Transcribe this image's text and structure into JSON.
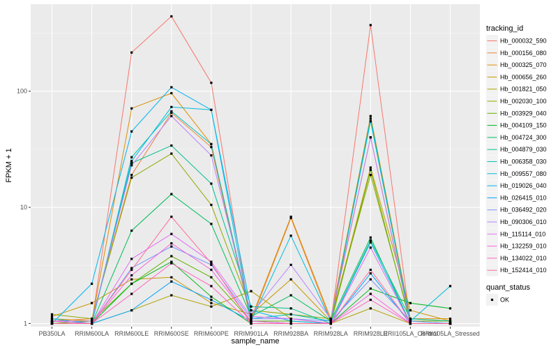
{
  "chart_data": {
    "type": "line",
    "xlabel": "sample_name",
    "ylabel": "FPKM + 1",
    "y_scale": "log10",
    "ylim": [
      0.94,
      560
    ],
    "y_ticks": [
      {
        "value": 1,
        "label": "1"
      },
      {
        "value": 10,
        "label": "10"
      },
      {
        "value": 100,
        "label": "100"
      }
    ],
    "grid": true,
    "legend_position": "right",
    "categories": [
      "PB350LA",
      "RRIM600LA",
      "RRIM600LE",
      "RRIM600SE",
      "RRIM600PE",
      "RRIM901LA",
      "RRIM928BA",
      "RRIM928LA",
      "RRIM928LE",
      "RRII105LA_Control",
      "RRII105LA_Stressed"
    ],
    "legend_title": "tracking_id",
    "series": [
      {
        "name": "Hb_000032_590",
        "color": "#F8766D",
        "values": [
          1.0,
          1.0,
          215,
          440,
          118,
          1.0,
          1.0,
          1.0,
          370,
          1.0,
          1.0
        ]
      },
      {
        "name": "Hb_000156_080",
        "color": "#EC8239",
        "values": [
          1.05,
          1.1,
          19,
          65,
          33,
          1.05,
          8.1,
          1.05,
          40,
          1.05,
          1.05
        ]
      },
      {
        "name": "Hb_000325_070",
        "color": "#DB8E00",
        "values": [
          1.1,
          1.05,
          71,
          96,
          35,
          1.1,
          8.3,
          1.1,
          61,
          1.1,
          1.1
        ]
      },
      {
        "name": "Hb_000656_260",
        "color": "#C79800",
        "values": [
          1.15,
          1.5,
          2.4,
          2.5,
          1.5,
          1.2,
          2.4,
          1.05,
          22,
          1.3,
          1.05
        ]
      },
      {
        "name": "Hb_001821_050",
        "color": "#AEA200",
        "values": [
          1.05,
          1.0,
          1.3,
          1.75,
          1.4,
          1.9,
          1.1,
          1.0,
          1.35,
          1.0,
          1.0
        ]
      },
      {
        "name": "Hb_002030_100",
        "color": "#8FAA00",
        "values": [
          1.2,
          1.1,
          18,
          29,
          10.5,
          1.3,
          1.2,
          1.1,
          19,
          1.05,
          1.05
        ]
      },
      {
        "name": "Hb_003929_040",
        "color": "#64B200",
        "values": [
          1.0,
          1.05,
          2.2,
          3.8,
          2.5,
          1.05,
          1.05,
          1.0,
          21,
          1.0,
          1.0
        ]
      },
      {
        "name": "Hb_004109_150",
        "color": "#00B81B",
        "values": [
          1.05,
          1.0,
          2.2,
          3.4,
          1.7,
          1.0,
          1.0,
          1.0,
          2.0,
          1.5,
          1.35
        ]
      },
      {
        "name": "Hb_004724_300",
        "color": "#00BD5C",
        "values": [
          1.0,
          1.0,
          6.3,
          13,
          7.2,
          1.15,
          1.75,
          1.05,
          5.5,
          1.0,
          1.0
        ]
      },
      {
        "name": "Hb_004879_030",
        "color": "#00C08E",
        "values": [
          1.05,
          1.0,
          24,
          34,
          16,
          1.4,
          1.35,
          1.0,
          5.2,
          1.1,
          1.05
        ]
      },
      {
        "name": "Hb_006358_030",
        "color": "#00C1B7",
        "values": [
          1.0,
          1.0,
          27,
          67,
          35,
          1.1,
          1.2,
          1.05,
          58,
          1.05,
          1.0
        ]
      },
      {
        "name": "Hb_009557_080",
        "color": "#00BDDC",
        "values": [
          1.1,
          1.0,
          25,
          73,
          69,
          1.05,
          5.7,
          1.05,
          55,
          1.05,
          2.1
        ]
      },
      {
        "name": "Hb_019026_040",
        "color": "#00B4F0",
        "values": [
          1.0,
          2.2,
          45,
          108,
          69,
          1.3,
          1.05,
          1.0,
          5.0,
          1.0,
          1.0
        ]
      },
      {
        "name": "Hb_026415_010",
        "color": "#00A5FF",
        "values": [
          1.0,
          1.0,
          1.3,
          2.3,
          1.6,
          1.05,
          1.0,
          1.0,
          2.7,
          1.0,
          1.0
        ]
      },
      {
        "name": "Hb_036492_020",
        "color": "#7997FF",
        "values": [
          1.05,
          1.0,
          3.0,
          4.6,
          3.2,
          1.1,
          1.1,
          1.05,
          2.4,
          1.05,
          1.0
        ]
      },
      {
        "name": "Hb_090306_010",
        "color": "#BB83FF",
        "values": [
          1.05,
          1.05,
          23,
          61,
          28,
          1.2,
          3.2,
          1.1,
          40,
          1.0,
          1.0
        ]
      },
      {
        "name": "Hb_115114_010",
        "color": "#E26EF7",
        "values": [
          1.0,
          1.0,
          3.6,
          5.9,
          3.4,
          1.15,
          1.1,
          1.0,
          4.5,
          1.0,
          1.0
        ]
      },
      {
        "name": "Hb_132259_010",
        "color": "#F863DF",
        "values": [
          1.05,
          1.0,
          2.6,
          4.9,
          2.9,
          1.05,
          1.0,
          1.0,
          1.8,
          1.0,
          1.0
        ]
      },
      {
        "name": "Hb_134022_010",
        "color": "#FF62BF",
        "values": [
          1.0,
          1.0,
          1.8,
          3.3,
          2.1,
          1.0,
          1.0,
          1.0,
          1.6,
          1.0,
          1.0
        ]
      },
      {
        "name": "Hb_152414_010",
        "color": "#FF6A98",
        "values": [
          1.0,
          1.0,
          2.9,
          8.3,
          3.3,
          1.0,
          1.0,
          1.0,
          2.9,
          1.0,
          1.0
        ]
      }
    ],
    "shape_legend": {
      "title": "quant_status",
      "items": [
        {
          "label": "OK"
        }
      ]
    }
  }
}
